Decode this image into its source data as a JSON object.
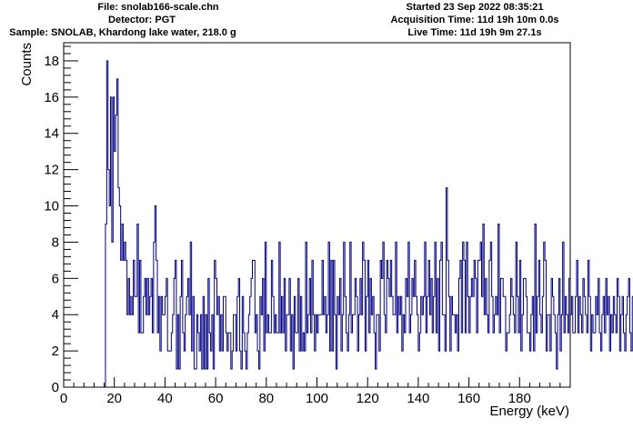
{
  "header": {
    "file": "File: snolab166-scale.chn",
    "detector": "Detector: PGT",
    "sample": "Sample: SNOLAB, Khardong lake water, 218.0  g",
    "started": "Started 23 Sep 2022 08:35:21",
    "acquisition_time": "Acquisition Time: 11d 19h 10m 0.0s",
    "live_time": "Live Time: 11d 19h 9m 27.1s"
  },
  "chart_data": {
    "type": "histogram",
    "xlabel": "Energy (keV)",
    "ylabel": "Counts",
    "xlim": [
      0,
      200
    ],
    "ylim": [
      0,
      19
    ],
    "line_color": "#000080",
    "x_ticks": [
      0,
      20,
      40,
      60,
      80,
      100,
      120,
      140,
      160,
      180
    ],
    "y_ticks": [
      0,
      2,
      4,
      6,
      8,
      10,
      12,
      14,
      16,
      18
    ],
    "bin_width_keV": 0.5,
    "bins_start_keV": 16.5,
    "counts": [
      9,
      18,
      12,
      10,
      16,
      8,
      16,
      13,
      15,
      17,
      11,
      10,
      7,
      9,
      7,
      8,
      7,
      4,
      6,
      4,
      5,
      4,
      7,
      5,
      5,
      9,
      3,
      7,
      3,
      3,
      5,
      6,
      4,
      6,
      4,
      5,
      6,
      3,
      8,
      10,
      7,
      3,
      5,
      2,
      5,
      4,
      4,
      5,
      6,
      2,
      2,
      2,
      3,
      4,
      6,
      7,
      1,
      4,
      1,
      5,
      7,
      3,
      2,
      4,
      5,
      6,
      4,
      8,
      2,
      5,
      1,
      1,
      4,
      3,
      2,
      4,
      1,
      5,
      1,
      4,
      1,
      6,
      3,
      2,
      4,
      1,
      7,
      6,
      4,
      5,
      2,
      4,
      2,
      5,
      5,
      3,
      2,
      3,
      3,
      1,
      2,
      4,
      4,
      2,
      5,
      6,
      2,
      1,
      5,
      3,
      2,
      1,
      3,
      4,
      5,
      6,
      7,
      7,
      3,
      4,
      2,
      1,
      5,
      4,
      6,
      2,
      8,
      3,
      4,
      3,
      3,
      7,
      5,
      3,
      4,
      3,
      3,
      8,
      3,
      5,
      3,
      6,
      2,
      4,
      4,
      6,
      2,
      4,
      1,
      5,
      3,
      3,
      6,
      2,
      5,
      2,
      3,
      2,
      8,
      3,
      4,
      6,
      3,
      7,
      4,
      2,
      4,
      3,
      4,
      4,
      4,
      7,
      4,
      5,
      3,
      4,
      8,
      2,
      7,
      2,
      7,
      4,
      1,
      5,
      4,
      6,
      2,
      4,
      8,
      5,
      3,
      2,
      4,
      8,
      3,
      4,
      4,
      6,
      5,
      2,
      4,
      6,
      4,
      8,
      7,
      2,
      5,
      7,
      3,
      6,
      4,
      5,
      3,
      1,
      4,
      4,
      2,
      7,
      6,
      8,
      4,
      3,
      7,
      6,
      5,
      7,
      5,
      4,
      4,
      8,
      3,
      5,
      4,
      5,
      2,
      4,
      3,
      6,
      5,
      8,
      3,
      4,
      6,
      5,
      7,
      5,
      4,
      2,
      3,
      5,
      4,
      5,
      8,
      3,
      5,
      7,
      4,
      6,
      3,
      5,
      8,
      3,
      6,
      2,
      7,
      8,
      4,
      4,
      2,
      11,
      7,
      5,
      2,
      5,
      4,
      4,
      3,
      4,
      2,
      6,
      7,
      3,
      8,
      7,
      3,
      8,
      5,
      3,
      5,
      6,
      5,
      7,
      6,
      3,
      7,
      7,
      8,
      5,
      9,
      4,
      6,
      4,
      3,
      7,
      8,
      5,
      3,
      4,
      5,
      4,
      9,
      3,
      6,
      6,
      5,
      5,
      2,
      3,
      3,
      4,
      6,
      5,
      4,
      3,
      8,
      5,
      3,
      7,
      2,
      4,
      6,
      6,
      5,
      3,
      3,
      2,
      4,
      5,
      2,
      9,
      3,
      5,
      7,
      4,
      3,
      5,
      8,
      7,
      2,
      4,
      4,
      2,
      6,
      5,
      4,
      3,
      1,
      4,
      6,
      2,
      4,
      8,
      3,
      5,
      4,
      3,
      6,
      4,
      5,
      3,
      3,
      5,
      7,
      3,
      5,
      4,
      3,
      6,
      5,
      4,
      3,
      7,
      5,
      2,
      4,
      3,
      3,
      5,
      4,
      6,
      3,
      2,
      4,
      5,
      3,
      6,
      4,
      5,
      2,
      4,
      3,
      5,
      4,
      3,
      6,
      5,
      2,
      4,
      5,
      3,
      2,
      4,
      5,
      6,
      3,
      2,
      5,
      4,
      3,
      5,
      6,
      2,
      4,
      3,
      5,
      4,
      2,
      6
    ]
  }
}
